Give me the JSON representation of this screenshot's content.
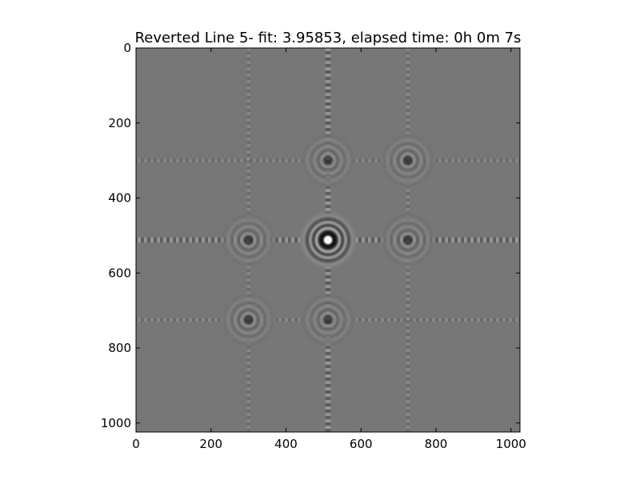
{
  "chart_data": {
    "type": "heatmap",
    "title": "Reverted Line 5- fit: 3.95853, elapsed time: 0h 0m 7s",
    "xlabel": "",
    "ylabel": "",
    "xlim": [
      0,
      1024
    ],
    "ylim": [
      1024,
      0
    ],
    "x_ticks": [
      "0",
      "200",
      "400",
      "600",
      "800",
      "1000"
    ],
    "y_ticks": [
      "0",
      "200",
      "400",
      "600",
      "800",
      "1000"
    ],
    "x_tick_values": [
      0,
      200,
      400,
      600,
      800,
      1000
    ],
    "y_tick_values": [
      0,
      200,
      400,
      600,
      800,
      1000
    ],
    "colormap": "gray",
    "grid": false,
    "features": {
      "center": [
        512,
        512
      ],
      "ring_spots": [
        {
          "x": 512,
          "y": 512,
          "kind": "central-bright"
        },
        {
          "x": 300,
          "y": 512,
          "kind": "ring"
        },
        {
          "x": 725,
          "y": 512,
          "kind": "ring"
        },
        {
          "x": 512,
          "y": 300,
          "kind": "ring"
        },
        {
          "x": 725,
          "y": 300,
          "kind": "ring"
        },
        {
          "x": 300,
          "y": 725,
          "kind": "ring"
        },
        {
          "x": 512,
          "y": 725,
          "kind": "ring"
        }
      ],
      "fringe_lines": {
        "horizontal": [
          300,
          512,
          725
        ],
        "vertical": [
          300,
          512,
          725
        ]
      }
    }
  },
  "colors": {
    "background_gray": "#777777",
    "axes": "#000000"
  }
}
